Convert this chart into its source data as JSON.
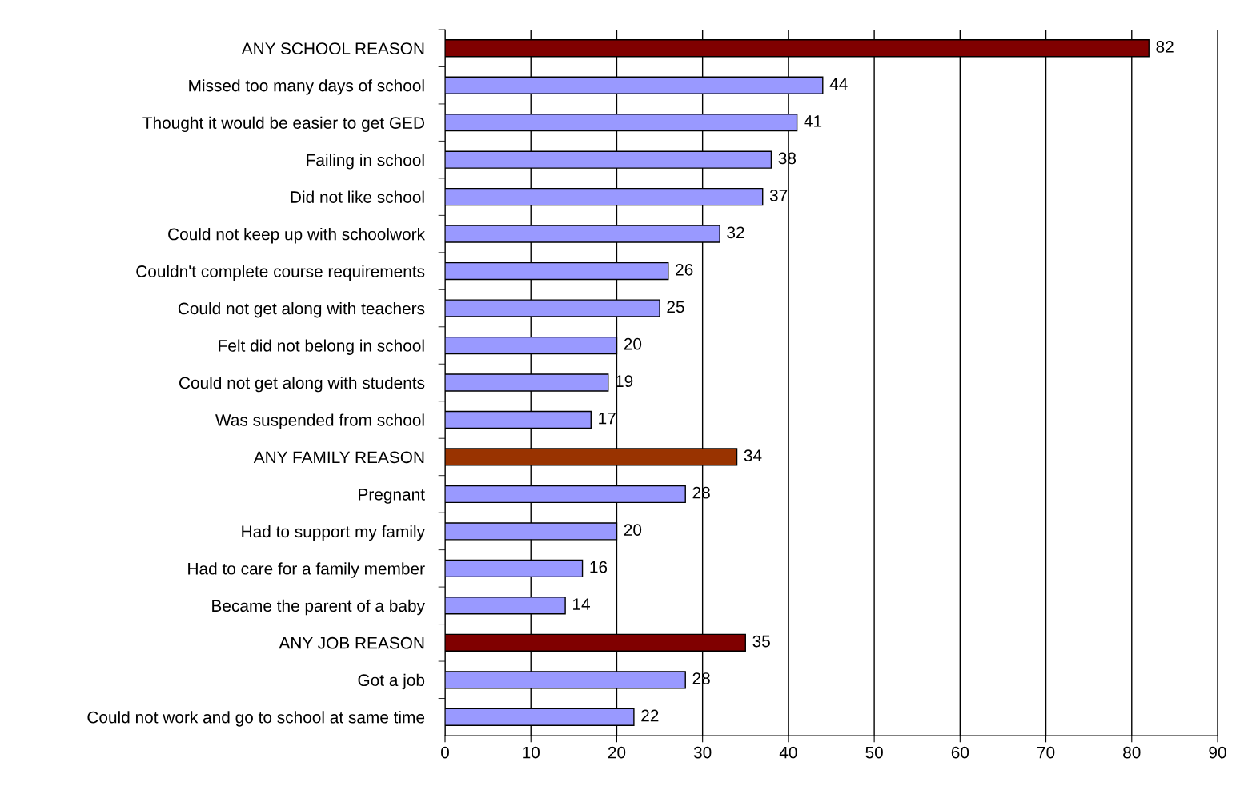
{
  "chart_data": {
    "type": "bar",
    "orientation": "horizontal",
    "categories": [
      "ANY SCHOOL REASON",
      "Missed too many days of school",
      "Thought it would be easier to get GED",
      "Failing in school",
      "Did not like school",
      "Could not keep up with schoolwork",
      "Couldn't complete course requirements",
      "Could not get along with teachers",
      "Felt did not belong in school",
      "Could not get along with students",
      "Was suspended from school",
      "ANY FAMILY REASON",
      "Pregnant",
      "Had to support my family",
      "Had to care for a family member",
      "Became the parent of a baby",
      "ANY JOB REASON",
      "Got a job",
      "Could not work and go to school at same time"
    ],
    "values": [
      82,
      44,
      41,
      38,
      37,
      32,
      26,
      25,
      20,
      19,
      17,
      34,
      28,
      20,
      16,
      14,
      35,
      28,
      22
    ],
    "colors": [
      "#800000",
      "#9999ff",
      "#9999ff",
      "#9999ff",
      "#9999ff",
      "#9999ff",
      "#9999ff",
      "#9999ff",
      "#9999ff",
      "#9999ff",
      "#9999ff",
      "#993300",
      "#9999ff",
      "#9999ff",
      "#9999ff",
      "#9999ff",
      "#800000",
      "#9999ff",
      "#9999ff"
    ],
    "xlim": [
      0,
      90
    ],
    "xticks": [
      0,
      10,
      20,
      30,
      40,
      50,
      60,
      70,
      80,
      90
    ],
    "grid": "x",
    "data_labels": true
  }
}
